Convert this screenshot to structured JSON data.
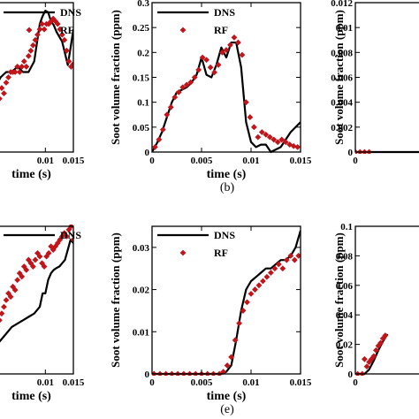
{
  "figure": {
    "captions": [
      "(b)",
      "(e)"
    ]
  },
  "chart_data": [
    {
      "id": "a",
      "type": "line",
      "xlabel": "time (s)",
      "ylabel": "",
      "xlim": [
        0,
        0.015
      ],
      "ylim": [
        0,
        0.28
      ],
      "xticks": [
        "0.01",
        "0.015"
      ],
      "yticks": [],
      "legend_labels": [
        "DNS",
        "RF"
      ],
      "series": [
        {
          "name": "DNS",
          "style": "line",
          "color": "#000000",
          "x": [
            0.0,
            0.001,
            0.002,
            0.003,
            0.004,
            0.005,
            0.006,
            0.007,
            0.008,
            0.009,
            0.0095,
            0.01,
            0.0105,
            0.011,
            0.0115,
            0.012,
            0.013,
            0.0135,
            0.014,
            0.0145,
            0.015
          ],
          "y": [
            0.1,
            0.12,
            0.14,
            0.15,
            0.15,
            0.16,
            0.15,
            0.15,
            0.17,
            0.24,
            0.255,
            0.265,
            0.262,
            0.245,
            0.238,
            0.225,
            0.207,
            0.185,
            0.163,
            0.195,
            0.23
          ]
        },
        {
          "name": "RF",
          "style": "marker",
          "color": "#c0161b",
          "x": [
            0.0002,
            0.0006,
            0.001,
            0.0014,
            0.0018,
            0.0022,
            0.0026,
            0.003,
            0.0034,
            0.0038,
            0.0042,
            0.0046,
            0.005,
            0.0054,
            0.0058,
            0.0062,
            0.0066,
            0.007,
            0.0074,
            0.0078,
            0.0082,
            0.0086,
            0.009,
            0.0094,
            0.0098,
            0.0102,
            0.0106,
            0.011,
            0.0114,
            0.0118,
            0.0122,
            0.0126,
            0.013,
            0.0134,
            0.0138,
            0.0142,
            0.0146,
            0.015
          ],
          "y": [
            0.05,
            0.06,
            0.08,
            0.09,
            0.1,
            0.12,
            0.11,
            0.13,
            0.14,
            0.15,
            0.15,
            0.15,
            0.16,
            0.15,
            0.16,
            0.17,
            0.16,
            0.18,
            0.19,
            0.2,
            0.21,
            0.22,
            0.23,
            0.24,
            0.23,
            0.24,
            0.24,
            0.245,
            0.25,
            0.245,
            0.24,
            0.23,
            0.22,
            0.21,
            0.19,
            0.17,
            0.16,
            0.165
          ]
        }
      ]
    },
    {
      "id": "b",
      "type": "line",
      "xlabel": "time (s)",
      "ylabel": "Soot volume fraction (ppm)",
      "xlim": [
        0,
        0.015
      ],
      "ylim": [
        0,
        0.3
      ],
      "xticks": [
        "0",
        "0.005",
        "0.01",
        "0.015"
      ],
      "yticks": [
        "0",
        "0.05",
        "0.1",
        "0.15",
        "0.2",
        "0.25",
        "0.3"
      ],
      "legend_labels": [
        "DNS",
        "RF"
      ],
      "series": [
        {
          "name": "DNS",
          "style": "line",
          "color": "#000000",
          "x": [
            0.0,
            0.0005,
            0.001,
            0.0015,
            0.002,
            0.0025,
            0.003,
            0.0035,
            0.004,
            0.0045,
            0.005,
            0.0055,
            0.006,
            0.0065,
            0.007,
            0.0075,
            0.008,
            0.0085,
            0.009,
            0.0095,
            0.01,
            0.0105,
            0.011,
            0.0115,
            0.012,
            0.013,
            0.014,
            0.015
          ],
          "y": [
            0.0,
            0.018,
            0.04,
            0.07,
            0.1,
            0.12,
            0.125,
            0.13,
            0.14,
            0.155,
            0.19,
            0.155,
            0.15,
            0.175,
            0.21,
            0.19,
            0.22,
            0.22,
            0.17,
            0.06,
            0.02,
            0.01,
            0.015,
            0.015,
            0.0,
            0.01,
            0.04,
            0.06
          ]
        },
        {
          "name": "RF",
          "style": "marker",
          "color": "#c0161b",
          "x": [
            0.0003,
            0.0007,
            0.0011,
            0.0015,
            0.0019,
            0.0023,
            0.0027,
            0.0031,
            0.0035,
            0.0039,
            0.0043,
            0.0047,
            0.0051,
            0.0055,
            0.0059,
            0.0063,
            0.0067,
            0.0071,
            0.0075,
            0.0079,
            0.0083,
            0.0087,
            0.0091,
            0.0095,
            0.0099,
            0.0103,
            0.0107,
            0.0111,
            0.0115,
            0.0119,
            0.0123,
            0.0127,
            0.0131,
            0.0135,
            0.0139,
            0.0143,
            0.0147
          ],
          "y": [
            0.01,
            0.025,
            0.045,
            0.075,
            0.09,
            0.11,
            0.12,
            0.13,
            0.135,
            0.14,
            0.15,
            0.165,
            0.19,
            0.185,
            0.17,
            0.16,
            0.175,
            0.2,
            0.205,
            0.215,
            0.23,
            0.22,
            0.195,
            0.1,
            0.07,
            0.05,
            0.03,
            0.04,
            0.035,
            0.03,
            0.025,
            0.02,
            0.025,
            0.02,
            0.015,
            0.012,
            0.01
          ]
        }
      ]
    },
    {
      "id": "c",
      "type": "line",
      "xlabel": "",
      "ylabel": "Soot volume fraction (ppm)",
      "xlim": [
        0,
        0.015
      ],
      "ylim": [
        0,
        0.012
      ],
      "xticks": [
        "0"
      ],
      "yticks": [
        "0",
        "0.002",
        "0.004",
        "0.006",
        "0.008",
        "0.01",
        "0.012"
      ],
      "legend_labels": [],
      "series": [
        {
          "name": "DNS",
          "style": "line",
          "color": "#000000",
          "x": [
            0.0,
            0.015
          ],
          "y": [
            0.0,
            0.0
          ]
        },
        {
          "name": "RF",
          "style": "marker",
          "color": "#c0161b",
          "x": [
            0.0,
            0.001,
            0.002,
            0.003
          ],
          "y": [
            0.0,
            0.0,
            0.0,
            0.0
          ]
        }
      ]
    },
    {
      "id": "d",
      "type": "line",
      "xlabel": "time (s)",
      "ylabel": "",
      "xlim": [
        0,
        0.015
      ],
      "ylim": [
        0,
        0.22
      ],
      "xticks": [
        "0.01",
        "0.015"
      ],
      "yticks": [],
      "legend_labels": [
        "DNS"
      ],
      "series": [
        {
          "name": "DNS",
          "style": "line",
          "color": "#000000",
          "x": [
            0.0,
            0.001,
            0.002,
            0.003,
            0.004,
            0.005,
            0.006,
            0.007,
            0.008,
            0.009,
            0.0095,
            0.01,
            0.0105,
            0.011,
            0.0115,
            0.012,
            0.0125,
            0.013,
            0.0135,
            0.014,
            0.0145,
            0.015
          ],
          "y": [
            0.02,
            0.04,
            0.05,
            0.06,
            0.07,
            0.075,
            0.08,
            0.085,
            0.09,
            0.1,
            0.12,
            0.12,
            0.14,
            0.15,
            0.155,
            0.158,
            0.16,
            0.165,
            0.17,
            0.185,
            0.2,
            0.195
          ]
        },
        {
          "name": "RF",
          "style": "marker",
          "color": "#c0161b",
          "x": [
            0.0002,
            0.0006,
            0.001,
            0.0014,
            0.0018,
            0.0022,
            0.0026,
            0.003,
            0.0034,
            0.0038,
            0.0042,
            0.0046,
            0.005,
            0.0054,
            0.0058,
            0.0062,
            0.0066,
            0.007,
            0.0074,
            0.0078,
            0.0082,
            0.0086,
            0.009,
            0.0094,
            0.0098,
            0.0102,
            0.0106,
            0.011,
            0.0114,
            0.0118,
            0.0122,
            0.0126,
            0.013,
            0.0134,
            0.0138,
            0.0142,
            0.0146,
            0.015
          ],
          "y": [
            0.03,
            0.05,
            0.06,
            0.07,
            0.08,
            0.09,
            0.1,
            0.11,
            0.12,
            0.115,
            0.13,
            0.125,
            0.14,
            0.15,
            0.145,
            0.16,
            0.155,
            0.17,
            0.165,
            0.16,
            0.17,
            0.18,
            0.175,
            0.165,
            0.16,
            0.175,
            0.18,
            0.19,
            0.185,
            0.19,
            0.195,
            0.2,
            0.205,
            0.21,
            0.205,
            0.215,
            0.22,
            0.2
          ]
        }
      ]
    },
    {
      "id": "e",
      "type": "line",
      "xlabel": "time (s)",
      "ylabel": "Soot volume fraction (ppm)",
      "xlim": [
        0,
        0.015
      ],
      "ylim": [
        0,
        0.035
      ],
      "xticks": [
        "0",
        "0.005",
        "0.01",
        "0.015"
      ],
      "yticks": [
        "0",
        "0.01",
        "0.02",
        "0.03"
      ],
      "legend_labels": [
        "DNS",
        "RF"
      ],
      "series": [
        {
          "name": "DNS",
          "style": "line",
          "color": "#000000",
          "x": [
            0.0,
            0.007,
            0.0075,
            0.008,
            0.0085,
            0.009,
            0.0095,
            0.01,
            0.0105,
            0.011,
            0.0115,
            0.012,
            0.0125,
            0.013,
            0.0135,
            0.014,
            0.0145,
            0.015
          ],
          "y": [
            0.0,
            0.0,
            0.0005,
            0.002,
            0.008,
            0.015,
            0.02,
            0.022,
            0.023,
            0.024,
            0.025,
            0.025,
            0.026,
            0.027,
            0.027,
            0.028,
            0.03,
            0.034
          ]
        },
        {
          "name": "RF",
          "style": "marker",
          "color": "#c0161b",
          "x": [
            0.0002,
            0.0008,
            0.0014,
            0.002,
            0.0026,
            0.0032,
            0.0038,
            0.0044,
            0.005,
            0.0056,
            0.0062,
            0.0068,
            0.0072,
            0.0076,
            0.008,
            0.0084,
            0.0088,
            0.0092,
            0.0096,
            0.01,
            0.0104,
            0.0108,
            0.0112,
            0.0116,
            0.012,
            0.0124,
            0.0128,
            0.0132,
            0.0136,
            0.014,
            0.0144,
            0.0148
          ],
          "y": [
            0.0,
            0.0,
            0.0,
            0.0,
            0.0,
            0.0,
            0.0,
            0.0,
            0.0,
            0.0,
            0.0,
            0.0,
            0.0005,
            0.002,
            0.004,
            0.008,
            0.012,
            0.015,
            0.017,
            0.019,
            0.02,
            0.021,
            0.022,
            0.023,
            0.024,
            0.025,
            0.026,
            0.025,
            0.027,
            0.028,
            0.027,
            0.028
          ]
        }
      ]
    },
    {
      "id": "f",
      "type": "line",
      "xlabel": "",
      "ylabel": "Soot volume fraction (ppm)",
      "xlim": [
        0,
        0.015
      ],
      "ylim": [
        0,
        0.1
      ],
      "xticks": [
        "0"
      ],
      "yticks": [
        "0",
        "0.02",
        "0.04",
        "0.06",
        "0.08",
        "0.1"
      ],
      "legend_labels": [],
      "series": [
        {
          "name": "DNS",
          "style": "line",
          "color": "#000000",
          "x": [
            0.0,
            0.002,
            0.003,
            0.004,
            0.005,
            0.006,
            0.007
          ],
          "y": [
            0.0,
            0.0,
            0.003,
            0.009,
            0.016,
            0.022,
            0.027
          ]
        },
        {
          "name": "RF",
          "style": "marker",
          "color": "#c0161b",
          "x": [
            0.0005,
            0.0015,
            0.002,
            0.0025,
            0.003,
            0.0035,
            0.004,
            0.0045,
            0.005,
            0.0055,
            0.006,
            0.0065
          ],
          "y": [
            0.0,
            0.0,
            0.01,
            0.005,
            0.008,
            0.01,
            0.012,
            0.016,
            0.019,
            0.021,
            0.024,
            0.026
          ]
        }
      ]
    }
  ]
}
